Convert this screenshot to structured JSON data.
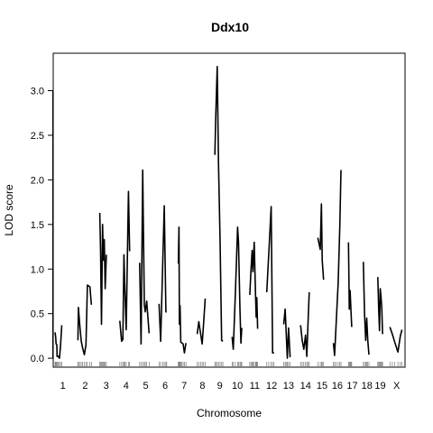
{
  "chart_data": {
    "type": "line",
    "title": "Ddx10",
    "xlabel": "Chromosome",
    "ylabel": "LOD score",
    "ylim": [
      -0.1,
      3.42
    ],
    "yticks": [
      0.0,
      0.5,
      1.0,
      1.5,
      2.0,
      2.5,
      3.0
    ],
    "ytick_labels": [
      "0.0",
      "0.5",
      "1.0",
      "1.5",
      "2.0",
      "2.5",
      "3.0"
    ],
    "grid": false,
    "legend": "none",
    "line_color": "#000000",
    "chromosomes": [
      {
        "label": "1",
        "length": 195,
        "points": [
          [
            0,
            0.29
          ],
          [
            8,
            0.24
          ],
          [
            14,
            0.16
          ],
          [
            23,
            0.15
          ],
          [
            26,
            0.02
          ],
          [
            40,
            0.02
          ],
          [
            55,
            0.0
          ],
          [
            68,
            0.14
          ],
          [
            84,
            0.37
          ]
        ]
      },
      {
        "label": "2",
        "length": 182,
        "points": [
          [
            0,
            0.2
          ],
          [
            6,
            0.57
          ],
          [
            25,
            0.35
          ],
          [
            42,
            0.19
          ],
          [
            58,
            0.12
          ],
          [
            80,
            0.04
          ],
          [
            100,
            0.15
          ],
          [
            118,
            0.82
          ],
          [
            150,
            0.8
          ],
          [
            168,
            0.6
          ]
        ]
      },
      {
        "label": "3",
        "length": 160,
        "points": [
          [
            0,
            1.63
          ],
          [
            10,
            1.2
          ],
          [
            22,
            0.38
          ],
          [
            35,
            1.5
          ],
          [
            45,
            1.1
          ],
          [
            57,
            1.33
          ],
          [
            68,
            0.78
          ],
          [
            82,
            1.16
          ]
        ]
      },
      {
        "label": "4",
        "length": 157,
        "points": [
          [
            0,
            0.42
          ],
          [
            22,
            0.19
          ],
          [
            38,
            0.21
          ],
          [
            52,
            1.16
          ],
          [
            62,
            0.82
          ],
          [
            80,
            0.32
          ],
          [
            108,
            1.87
          ],
          [
            122,
            1.2
          ]
        ]
      },
      {
        "label": "5",
        "length": 152,
        "points": [
          [
            0,
            1.07
          ],
          [
            18,
            0.16
          ],
          [
            38,
            2.11
          ],
          [
            58,
            0.6
          ],
          [
            70,
            0.52
          ],
          [
            88,
            0.64
          ],
          [
            118,
            0.28
          ]
        ]
      },
      {
        "label": "6",
        "length": 150,
        "points": [
          [
            0,
            0.61
          ],
          [
            20,
            0.19
          ],
          [
            45,
            1.03
          ],
          [
            65,
            1.71
          ],
          [
            85,
            0.52
          ],
          [
            95,
            0.52
          ]
        ]
      },
      {
        "label": "7",
        "length": 145,
        "points": [
          [
            0,
            1.06
          ],
          [
            8,
            1.47
          ],
          [
            14,
            0.38
          ],
          [
            22,
            0.59
          ],
          [
            30,
            0.18
          ],
          [
            45,
            0.17
          ],
          [
            60,
            0.16
          ],
          [
            75,
            0.06
          ],
          [
            95,
            0.17
          ]
        ]
      },
      {
        "label": "8",
        "length": 130,
        "points": [
          [
            0,
            0.27
          ],
          [
            20,
            0.41
          ],
          [
            42,
            0.28
          ],
          [
            62,
            0.16
          ],
          [
            80,
            0.39
          ],
          [
            100,
            0.67
          ]
        ]
      },
      {
        "label": "9",
        "length": 125,
        "points": [
          [
            0,
            2.28
          ],
          [
            12,
            2.72
          ],
          [
            30,
            3.27
          ],
          [
            45,
            2.2
          ],
          [
            65,
            1.3
          ],
          [
            85,
            0.2
          ],
          [
            100,
            0.19
          ]
        ]
      },
      {
        "label": "10",
        "length": 130,
        "points": [
          [
            0,
            0.24
          ],
          [
            15,
            0.1
          ],
          [
            40,
            0.72
          ],
          [
            68,
            1.47
          ],
          [
            80,
            1.3
          ],
          [
            98,
            0.55
          ],
          [
            110,
            0.17
          ],
          [
            120,
            0.34
          ]
        ]
      },
      {
        "label": "11",
        "length": 122,
        "points": [
          [
            0,
            0.71
          ],
          [
            15,
            0.98
          ],
          [
            30,
            1.21
          ],
          [
            40,
            0.97
          ],
          [
            55,
            1.3
          ],
          [
            72,
            0.7
          ],
          [
            80,
            0.46
          ],
          [
            88,
            0.68
          ],
          [
            98,
            0.33
          ]
        ]
      },
      {
        "label": "12",
        "length": 121,
        "points": [
          [
            0,
            0.74
          ],
          [
            25,
            1.18
          ],
          [
            55,
            1.7
          ],
          [
            72,
            0.06
          ],
          [
            90,
            0.06
          ]
        ]
      },
      {
        "label": "13",
        "length": 120,
        "points": [
          [
            0,
            0.38
          ],
          [
            18,
            0.55
          ],
          [
            30,
            0.3
          ],
          [
            45,
            0.0
          ],
          [
            60,
            0.34
          ],
          [
            80,
            0.01
          ]
        ]
      },
      {
        "label": "14",
        "length": 125,
        "points": [
          [
            0,
            0.37
          ],
          [
            20,
            0.2
          ],
          [
            40,
            0.1
          ],
          [
            62,
            0.26
          ],
          [
            78,
            0.02
          ],
          [
            95,
            0.46
          ],
          [
            108,
            0.74
          ]
        ]
      },
      {
        "label": "15",
        "length": 104,
        "points": [
          [
            0,
            1.35
          ],
          [
            30,
            1.22
          ],
          [
            45,
            1.73
          ],
          [
            55,
            1.1
          ],
          [
            72,
            0.88
          ]
        ]
      },
      {
        "label": "16",
        "length": 98,
        "points": [
          [
            0,
            0.17
          ],
          [
            15,
            0.03
          ],
          [
            35,
            0.4
          ],
          [
            60,
            0.85
          ],
          [
            80,
            1.48
          ],
          [
            95,
            2.11
          ]
        ]
      },
      {
        "label": "17",
        "length": 95,
        "points": [
          [
            0,
            1.3
          ],
          [
            10,
            0.55
          ],
          [
            20,
            0.76
          ],
          [
            30,
            0.55
          ],
          [
            40,
            0.35
          ]
        ]
      },
      {
        "label": "18",
        "length": 90,
        "points": [
          [
            0,
            1.08
          ],
          [
            15,
            0.5
          ],
          [
            30,
            0.2
          ],
          [
            42,
            0.45
          ],
          [
            55,
            0.2
          ],
          [
            70,
            0.04
          ]
        ]
      },
      {
        "label": "19",
        "length": 61,
        "points": [
          [
            0,
            0.91
          ],
          [
            12,
            0.52
          ],
          [
            22,
            0.31
          ],
          [
            30,
            0.78
          ],
          [
            40,
            0.7
          ],
          [
            50,
            0.57
          ],
          [
            60,
            0.27
          ]
        ]
      },
      {
        "label": "X",
        "length": 166,
        "points": [
          [
            0,
            0.35
          ],
          [
            30,
            0.27
          ],
          [
            60,
            0.18
          ],
          [
            100,
            0.07
          ],
          [
            130,
            0.25
          ],
          [
            150,
            0.32
          ]
        ]
      }
    ]
  }
}
